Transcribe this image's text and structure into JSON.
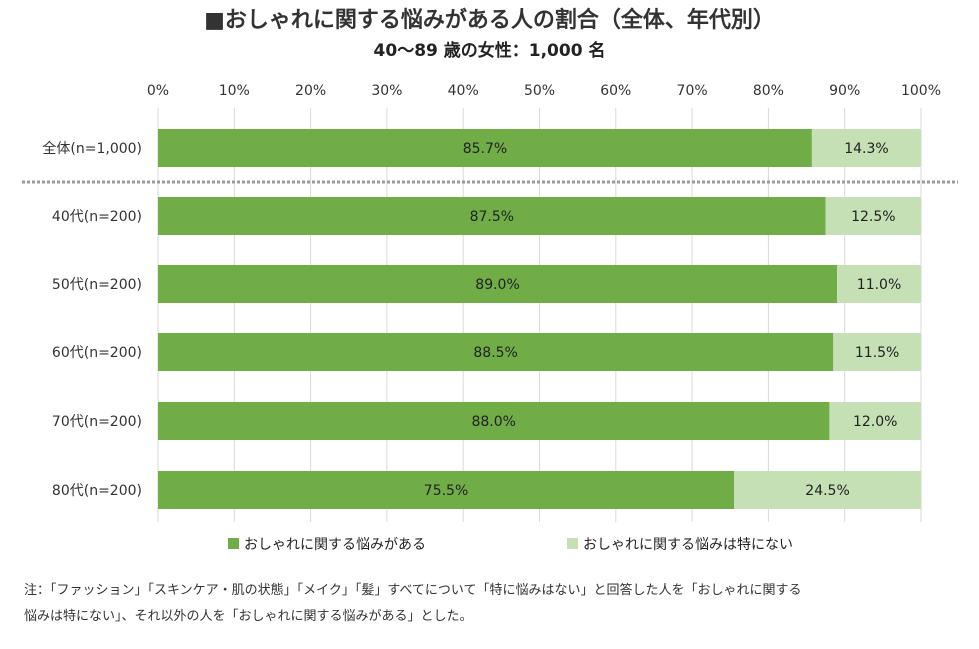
{
  "chart_data": {
    "type": "bar",
    "stacked": true,
    "orientation": "horizontal",
    "title": "■おしゃれに関する悩みがある人の割合（全体、年代別）",
    "subtitle": "40～89 歳の女性：1,000 名",
    "categories": [
      "全体(n=1,000)",
      "40代(n=200)",
      "50代(n=200)",
      "60代(n=200)",
      "70代(n=200)",
      "80代(n=200)"
    ],
    "series": [
      {
        "name": "おしゃれに関する悩みがある",
        "values": [
          85.7,
          87.5,
          89.0,
          88.5,
          88.0,
          75.5
        ],
        "color": "#70ad47"
      },
      {
        "name": "おしゃれに関する悩みは特にない",
        "values": [
          14.3,
          12.5,
          11.0,
          11.5,
          12.0,
          24.5
        ],
        "color": "#c5e0b4"
      }
    ],
    "xlim": [
      0,
      100
    ],
    "x_ticks": [
      "0%",
      "10%",
      "20%",
      "30%",
      "40%",
      "50%",
      "60%",
      "70%",
      "80%",
      "90%",
      "100%"
    ],
    "value_labels": [
      [
        "85.7%",
        "87.5%",
        "89.0%",
        "88.5%",
        "88.0%",
        "75.5%"
      ],
      [
        "14.3%",
        "12.5%",
        "11.0%",
        "11.5%",
        "12.0%",
        "24.5%"
      ]
    ],
    "grid": true,
    "legend_position": "bottom"
  },
  "note": {
    "line1": "注：「ファッション」「スキンケア・肌の状態」「メイク」「髪」すべてについて「特に悩みはない」と回答した人を「おしゃれに関する",
    "line2": "悩みは特にない」、それ以外の人を「おしゃれに関する悩みがある」とした。"
  }
}
